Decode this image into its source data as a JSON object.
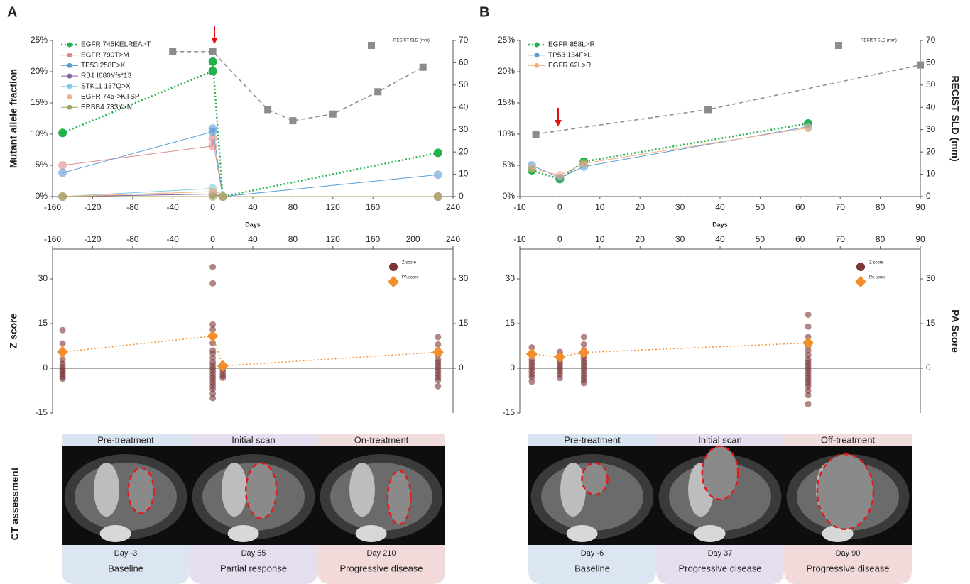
{
  "panels": [
    "A",
    "B"
  ],
  "chart_data": [
    {
      "type": "line",
      "xlabel": "Days",
      "ylabel": "Mutant allele fraction",
      "xlim": [
        -160,
        240
      ],
      "xticks": [
        -160,
        -120,
        -80,
        -40,
        0,
        40,
        80,
        120,
        160,
        240
      ],
      "ylim": [
        0,
        25
      ],
      "yticks": [
        {
          "value": 0,
          "label": "0%"
        },
        {
          "value": 5,
          "label": "5%"
        },
        {
          "value": 10,
          "label": "10%"
        },
        {
          "value": 15,
          "label": "15%"
        },
        {
          "value": 20,
          "label": "20%"
        },
        {
          "value": 25,
          "label": "25%"
        }
      ],
      "y2lim": [
        0,
        70
      ],
      "y2ticks": [
        0,
        10,
        20,
        30,
        40,
        50,
        60,
        70
      ],
      "legend": "upper left",
      "series": [
        {
          "name": "EGFR 745KELREA>T",
          "color": "#22b24c",
          "line_style": "dotted",
          "marker": "circle",
          "x": [
            -150,
            0,
            0,
            10,
            225
          ],
          "values": [
            10.2,
            20.1,
            21.6,
            0,
            7.0
          ]
        },
        {
          "name": "EGFR 790T>M",
          "color": "#e08a8a",
          "line_style": "solid",
          "marker": "circle",
          "x": [
            -150,
            0,
            0,
            10,
            225
          ],
          "values": [
            5.0,
            8.1,
            9.3,
            0,
            0
          ]
        },
        {
          "name": "TP53 258E>K",
          "color": "#5b9bd5",
          "line_style": "solid",
          "marker": "circle",
          "x": [
            -150,
            0,
            0,
            10,
            225
          ],
          "values": [
            3.8,
            10.4,
            10.9,
            0,
            3.5
          ]
        },
        {
          "name": "RB1 I680Yfs*13",
          "color": "#8064a2",
          "line_style": "solid",
          "marker": "circle",
          "x": [
            -150,
            0,
            10,
            225
          ],
          "values": [
            0,
            0.4,
            0,
            0
          ]
        },
        {
          "name": "STK11 137Q>X",
          "color": "#7ecbe0",
          "line_style": "solid",
          "marker": "circle",
          "x": [
            -150,
            0,
            10,
            225
          ],
          "values": [
            0,
            1.3,
            0,
            0
          ]
        },
        {
          "name": "EGFR 745->KTSP",
          "color": "#f4b183",
          "line_style": "solid",
          "marker": "circle",
          "x": [
            -150,
            0,
            10,
            225
          ],
          "values": [
            0,
            0.8,
            0,
            0
          ]
        },
        {
          "name": "ERBB4 733Y>N",
          "color": "#a3a35a",
          "line_style": "solid",
          "marker": "circle",
          "x": [
            -150,
            0,
            10,
            225
          ],
          "values": [
            0,
            0,
            0,
            0
          ]
        },
        {
          "name": "RECIST SLD (mm)",
          "axis": "y2",
          "color": "#8c8c8c",
          "line_style": "dashed",
          "marker": "square",
          "x": [
            -40,
            0,
            55,
            80,
            120,
            165,
            210
          ],
          "values": [
            65,
            65,
            39,
            34,
            37,
            47,
            58
          ]
        }
      ]
    },
    {
      "type": "scatter",
      "ylabel": "Z score",
      "xlim": [
        -160,
        240
      ],
      "xticks": [
        -160,
        -120,
        -80,
        -40,
        0,
        40,
        80,
        120,
        160,
        200,
        240
      ],
      "ylim": [
        -15,
        40
      ],
      "yticks": [
        -15,
        0,
        15,
        30
      ],
      "y2lim": [
        -15,
        40
      ],
      "y2ticks": [
        0,
        15,
        30
      ],
      "legend": "upper right",
      "series": [
        {
          "name": "Z score",
          "color": "#7b3535",
          "line_style": "none",
          "marker": "circle",
          "x": [
            -150,
            -150,
            -150,
            -150,
            -150,
            -150,
            -150,
            -150,
            -150,
            -150,
            -150,
            0,
            0,
            0,
            0,
            0,
            0,
            0,
            0,
            0,
            0,
            0,
            0,
            0,
            0,
            0,
            0,
            0,
            0,
            0,
            0,
            0,
            10,
            10,
            10,
            10,
            10,
            10,
            225,
            225,
            225,
            225,
            225,
            225,
            225,
            225,
            225,
            225,
            225,
            225,
            225
          ],
          "values": [
            12.8,
            8.3,
            5.5,
            3.0,
            1.5,
            0.5,
            -0.5,
            -1.2,
            -2,
            -2.8,
            -3.5,
            34,
            28.5,
            14.7,
            13,
            10.5,
            8.5,
            6,
            5,
            3.5,
            2,
            1,
            0,
            -1,
            -2,
            -3,
            -4,
            -5,
            -6,
            -7,
            -8.5,
            -10,
            1.2,
            0.5,
            -0.5,
            -1.5,
            -2.5,
            -3.2,
            10.5,
            8,
            6,
            4.5,
            3,
            2,
            1,
            0,
            -1,
            -2,
            -3,
            -4,
            -6
          ]
        },
        {
          "name": "PA score",
          "axis": "y2",
          "color": "#f28e2b",
          "line_style": "dotted",
          "marker": "diamond",
          "x": [
            -150,
            0,
            10,
            225
          ],
          "values": [
            5.5,
            10.8,
            0.8,
            5.4
          ]
        }
      ]
    },
    {
      "type": "line",
      "xlabel": "Days",
      "y2label": "RECIST SLD (mm)",
      "xlim": [
        -10,
        90
      ],
      "xticks": [
        -10,
        0,
        10,
        20,
        30,
        40,
        50,
        60,
        70,
        80,
        90
      ],
      "ylim": [
        0,
        25
      ],
      "yticks": [
        {
          "value": 0,
          "label": "0%"
        },
        {
          "value": 5,
          "label": "5%"
        },
        {
          "value": 10,
          "label": "10%"
        },
        {
          "value": 15,
          "label": "15%"
        },
        {
          "value": 20,
          "label": "20%"
        },
        {
          "value": 25,
          "label": "25%"
        }
      ],
      "y2lim": [
        0,
        70
      ],
      "y2ticks": [
        0,
        10,
        20,
        30,
        40,
        50,
        60,
        70
      ],
      "legend": "upper left",
      "series": [
        {
          "name": "EGFR 858L>R",
          "color": "#22b24c",
          "line_style": "dotted",
          "marker": "circle",
          "x": [
            -7,
            0,
            6,
            62
          ],
          "values": [
            4.2,
            2.8,
            5.6,
            11.7
          ]
        },
        {
          "name": "TP53 134F>L",
          "color": "#5b9bd5",
          "line_style": "solid",
          "marker": "circle",
          "x": [
            -7,
            0,
            6,
            62
          ],
          "values": [
            5.0,
            3.0,
            4.8,
            11.2
          ]
        },
        {
          "name": "EGFR 62L>R",
          "color": "#f4b183",
          "line_style": "solid",
          "marker": "circle",
          "x": [
            -7,
            0,
            6,
            62
          ],
          "values": [
            4.5,
            3.4,
            5.3,
            11.0
          ]
        },
        {
          "name": "RECIST SLD (mm)",
          "axis": "y2",
          "color": "#8c8c8c",
          "line_style": "dashed",
          "marker": "square",
          "x": [
            -6,
            37,
            90
          ],
          "values": [
            28,
            39,
            59
          ]
        }
      ]
    },
    {
      "type": "scatter",
      "y2label": "PA Score",
      "xlim": [
        -10,
        90
      ],
      "xticks": [
        -10,
        0,
        10,
        20,
        30,
        40,
        50,
        60,
        70,
        80,
        90
      ],
      "ylim": [
        -15,
        40
      ],
      "yticks": [
        -15,
        0,
        15,
        30
      ],
      "y2lim": [
        -15,
        40
      ],
      "y2ticks": [
        0,
        15,
        30
      ],
      "legend": "upper right",
      "series": [
        {
          "name": "Z score",
          "color": "#7b3535",
          "line_style": "none",
          "marker": "circle",
          "x": [
            -7,
            -7,
            -7,
            -7,
            -7,
            -7,
            -7,
            -7,
            -7,
            -7,
            0,
            0,
            0,
            0,
            0,
            0,
            0,
            0,
            0,
            6,
            6,
            6,
            6,
            6,
            6,
            6,
            6,
            6,
            6,
            6,
            6,
            6,
            62,
            62,
            62,
            62,
            62,
            62,
            62,
            62,
            62,
            62,
            62,
            62,
            62,
            62,
            62,
            62,
            62,
            62,
            62
          ],
          "values": [
            7,
            5,
            3,
            2,
            1,
            0,
            -1,
            -2,
            -3,
            -4.5,
            5.5,
            4.5,
            3,
            2,
            1,
            0,
            -1,
            -2,
            -3.3,
            10.5,
            8,
            6,
            4,
            3,
            2,
            1,
            0,
            -1,
            -2,
            -3,
            -4,
            -5,
            18,
            14,
            10.5,
            7.5,
            6,
            4.5,
            3,
            2,
            1,
            0,
            -1,
            -2,
            -3,
            -4,
            -5,
            -6,
            -7.5,
            -9,
            -12
          ]
        },
        {
          "name": "PA score",
          "axis": "y2",
          "color": "#f28e2b",
          "line_style": "dotted",
          "marker": "diamond",
          "x": [
            -7,
            0,
            6,
            62
          ],
          "values": [
            4.8,
            3.8,
            5.3,
            8.5
          ]
        }
      ]
    }
  ],
  "ct_assessment": {
    "label": "CT assessment",
    "panels": [
      [
        {
          "stage": "Pre-treatment",
          "day": "Day -3",
          "response": "Baseline"
        },
        {
          "stage": "Initial scan",
          "day": "Day 55",
          "response": "Partial response"
        },
        {
          "stage": "On-treatment",
          "day": "Day 210",
          "response": "Progressive disease"
        }
      ],
      [
        {
          "stage": "Pre-treatment",
          "day": "Day -6",
          "response": "Baseline"
        },
        {
          "stage": "Initial scan",
          "day": "Day 37",
          "response": "Progressive disease"
        },
        {
          "stage": "Off-treatment",
          "day": "Day 90",
          "response": "Progressive disease"
        }
      ]
    ]
  }
}
